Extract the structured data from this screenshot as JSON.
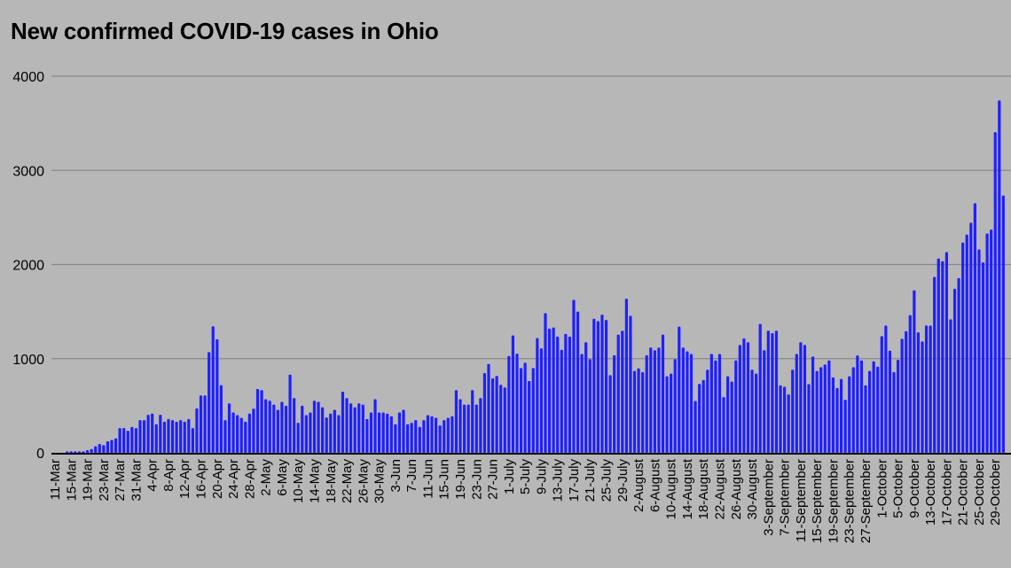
{
  "chart_data": {
    "type": "bar",
    "title": "New confirmed COVID-19 cases in Ohio",
    "xlabel": "",
    "ylabel": "",
    "ylim": [
      0,
      4000
    ],
    "y_ticks": [
      "0",
      "1000",
      "2000",
      "3000",
      "4000"
    ],
    "grid": true,
    "legend": "none",
    "bar_color": "#1f1fff",
    "background_color": "#b7b7b7",
    "x_tick_every_days": 4,
    "x_tick_labels": [
      "11-Mar",
      "15-Mar",
      "19-Mar",
      "23-Mar",
      "27-Mar",
      "31-Mar",
      "4-Apr",
      "8-Apr",
      "12-Apr",
      "16-Apr",
      "20-Apr",
      "24-Apr",
      "28-Apr",
      "2-May",
      "6-May",
      "10-May",
      "14-May",
      "18-May",
      "22-May",
      "26-May",
      "30-May",
      "3-Jun",
      "7-Jun",
      "11-Jun",
      "15-Jun",
      "19-Jun",
      "23-Jun",
      "27-Jun",
      "1-July",
      "5-July",
      "9-July",
      "13-July",
      "17-July",
      "21-July",
      "25-July",
      "29-July",
      "2-August",
      "6-August",
      "10-August",
      "14-August",
      "18-August",
      "22-August",
      "26-August",
      "30-August",
      "3-September",
      "7-September",
      "11-September",
      "15-September",
      "19-September",
      "23-September",
      "27-September",
      "1-October",
      "5-October",
      "9-October",
      "13-October",
      "17-October",
      "21-October",
      "25-October",
      "29-October"
    ],
    "values": [
      0,
      0,
      0,
      15,
      15,
      15,
      15,
      15,
      28,
      40,
      69,
      94,
      81,
      122,
      137,
      153,
      262,
      262,
      234,
      275,
      262,
      347,
      347,
      403,
      416,
      303,
      403,
      331,
      359,
      347,
      331,
      347,
      331,
      359,
      262,
      472,
      609,
      609,
      1069,
      1344,
      1206,
      719,
      347,
      525,
      428,
      400,
      372,
      331,
      416,
      469,
      678,
      666,
      569,
      553,
      512,
      456,
      541,
      500,
      831,
      581,
      319,
      500,
      400,
      428,
      553,
      541,
      484,
      375,
      416,
      456,
      400,
      650,
      581,
      525,
      484,
      525,
      512,
      359,
      428,
      569,
      428,
      428,
      416,
      388,
      303,
      428,
      456,
      303,
      319,
      347,
      275,
      347,
      400,
      388,
      372,
      291,
      347,
      372,
      388,
      666,
      569,
      512,
      512,
      666,
      512,
      581,
      847,
      944,
      791,
      816,
      722,
      694,
      1028,
      1247,
      1053,
      900,
      956,
      763,
      900,
      1219,
      1109,
      1484,
      1319,
      1331,
      1234,
      1094,
      1262,
      1234,
      1625,
      1500,
      1050,
      1174,
      994,
      1424,
      1399,
      1467,
      1411,
      825,
      1037,
      1255,
      1296,
      1636,
      1455,
      869,
      897,
      857,
      1037,
      1118,
      1090,
      1118,
      1255,
      813,
      841,
      994,
      1340,
      1118,
      1078,
      1050,
      551,
      732,
      773,
      882,
      1050,
      981,
      1050,
      592,
      813,
      757,
      981,
      1146,
      1215,
      1174,
      882,
      841,
      1368,
      1090,
      1296,
      1271,
      1296,
      717,
      701,
      620,
      882,
      1050,
      1174,
      1146,
      729,
      1022,
      869,
      910,
      938,
      981,
      801,
      688,
      785,
      564,
      813,
      910,
      1034,
      981,
      717,
      869,
      972,
      915,
      1239,
      1352,
      1085,
      858,
      987,
      1211,
      1292,
      1462,
      1726,
      1280,
      1182,
      1352,
      1352,
      1868,
      2063,
      2035,
      2132,
      1418,
      1742,
      1855,
      2233,
      2318,
      2443,
      2651,
      2160,
      2022,
      2330,
      2371,
      3406,
      3742,
      2733
    ]
  }
}
